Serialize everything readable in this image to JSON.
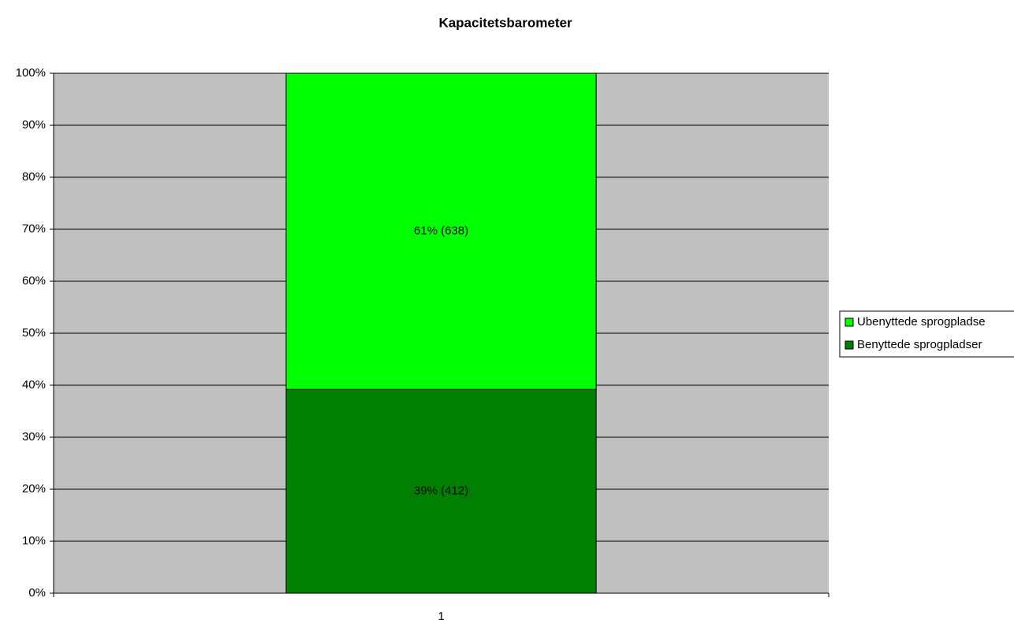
{
  "chart_data": {
    "type": "stacked_bar",
    "title": "Kapacitetsbarometer",
    "categories": [
      "1"
    ],
    "series": [
      {
        "name": "Benyttede sprogpladser",
        "color": "#008000",
        "values": [
          39.2
        ],
        "value_labels": [
          "39% (412)"
        ]
      },
      {
        "name": "Ubenyttede sprogpladse",
        "color": "#00ff00",
        "values": [
          60.8
        ],
        "value_labels": [
          "61% (638)"
        ]
      }
    ],
    "ylim": [
      0,
      100
    ],
    "yticks": [
      {
        "value": 0,
        "label": "0%"
      },
      {
        "value": 10,
        "label": "10%"
      },
      {
        "value": 20,
        "label": "20%"
      },
      {
        "value": 30,
        "label": "30%"
      },
      {
        "value": 40,
        "label": "40%"
      },
      {
        "value": 50,
        "label": "50%"
      },
      {
        "value": 60,
        "label": "60%"
      },
      {
        "value": 70,
        "label": "70%"
      },
      {
        "value": 80,
        "label": "80%"
      },
      {
        "value": 90,
        "label": "90%"
      },
      {
        "value": 100,
        "label": "100%"
      }
    ],
    "grid": true,
    "legend": "right",
    "plot_background": "#c0c0c0"
  }
}
